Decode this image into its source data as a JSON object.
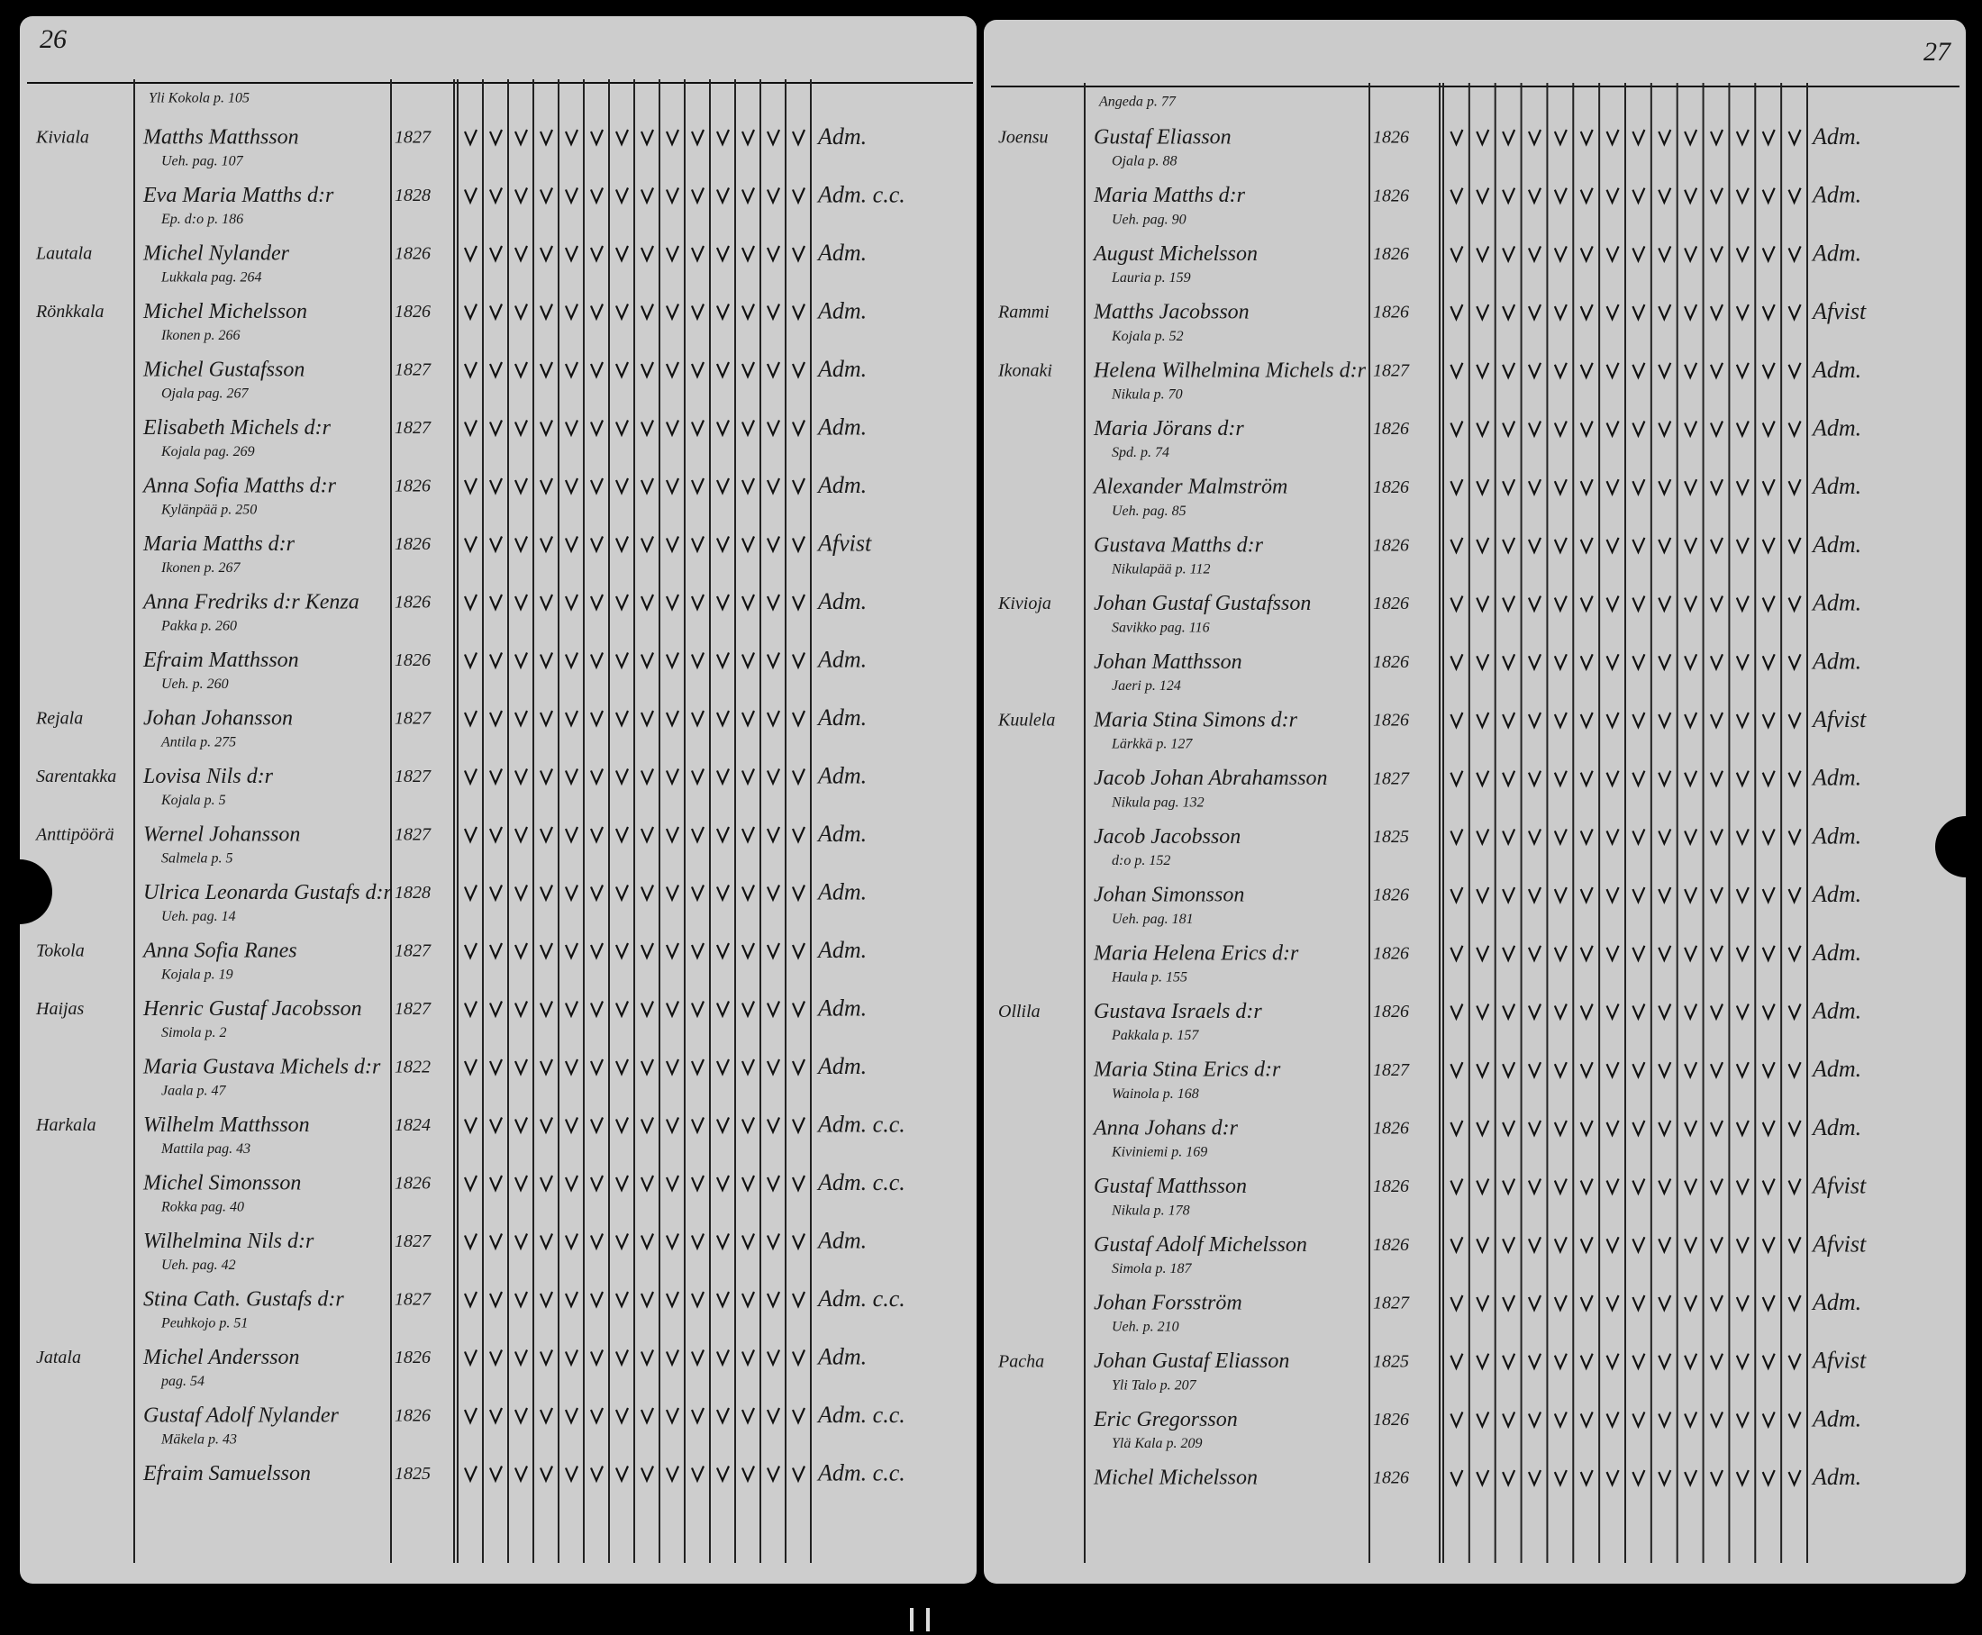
{
  "left_page": {
    "page_number": "26",
    "header_note": "Yli Kokola p. 105",
    "rows": [
      {
        "village": "Kiviala",
        "name": "Matths Matthsson",
        "note": "Ueh. pag. 107",
        "date": "1827",
        "result": "Adm."
      },
      {
        "name": "Eva Maria Matths d:r",
        "note": "Ep. d:o p. 186",
        "date": "1828",
        "result": "Adm. c.c."
      },
      {
        "village": "Lautala",
        "name": "Michel Nylander",
        "note": "Lukkala pag. 264",
        "date": "1826",
        "result": "Adm."
      },
      {
        "village": "Rönkkala",
        "name": "Michel Michelsson",
        "note": "Ikonen p. 266",
        "date": "1826",
        "result": "Adm."
      },
      {
        "name": "Michel Gustafsson",
        "note": "Ojala pag. 267",
        "date": "1827",
        "result": "Adm."
      },
      {
        "name": "Elisabeth Michels d:r",
        "note": "Kojala pag. 269",
        "date": "1827",
        "result": "Adm."
      },
      {
        "name": "Anna Sofia Matths d:r",
        "note": "Kylänpää p. 250",
        "date": "1826",
        "result": "Adm."
      },
      {
        "name": "Maria Matths d:r",
        "note": "Ikonen p. 267",
        "date": "1826",
        "result": "Afvist"
      },
      {
        "name": "Anna Fredriks d:r Kenza",
        "note": "Pakka p. 260",
        "date": "1826",
        "result": "Adm."
      },
      {
        "name": "Efraim Matthsson",
        "note": "Ueh. p. 260",
        "date": "1826",
        "result": "Adm."
      },
      {
        "village": "Rejala",
        "name": "Johan Johansson",
        "note": "Antila p. 275",
        "date": "1827",
        "result": "Adm."
      },
      {
        "village": "Sarentakka",
        "name": "Lovisa Nils d:r",
        "note": "Kojala p. 5",
        "date": "1827",
        "result": "Adm."
      },
      {
        "village": "Anttipöörä",
        "name": "Wernel Johansson",
        "note": "Salmela p. 5",
        "date": "1827",
        "result": "Adm."
      },
      {
        "name": "Ulrica Leonarda Gustafs d:r",
        "note": "Ueh. pag. 14",
        "date": "1828",
        "result": "Adm."
      },
      {
        "village": "Tokola",
        "name": "Anna Sofia Ranes",
        "note": "Kojala p. 19",
        "date": "1827",
        "result": "Adm."
      },
      {
        "village": "Haijas",
        "name": "Henric Gustaf Jacobsson",
        "note": "Simola p. 2",
        "date": "1827",
        "result": "Adm."
      },
      {
        "name": "Maria Gustava Michels d:r",
        "note": "Jaala p. 47",
        "date": "1822",
        "result": "Adm."
      },
      {
        "village": "Harkala",
        "name": "Wilhelm Matthsson",
        "note": "Mattila pag. 43",
        "date": "1824",
        "result": "Adm. c.c."
      },
      {
        "name": "Michel Simonsson",
        "note": "Rokka pag. 40",
        "date": "1826",
        "result": "Adm. c.c."
      },
      {
        "name": "Wilhelmina Nils d:r",
        "note": "Ueh. pag. 42",
        "date": "1827",
        "result": "Adm."
      },
      {
        "name": "Stina Cath. Gustafs d:r",
        "note": "Peuhkojo p. 51",
        "date": "1827",
        "result": "Adm. c.c."
      },
      {
        "village": "Jatala",
        "name": "Michel Andersson",
        "note": "pag. 54",
        "date": "1826",
        "result": "Adm."
      },
      {
        "name": "Gustaf Adolf Nylander",
        "note": "Mäkela p. 43",
        "date": "1826",
        "result": "Adm. c.c."
      },
      {
        "name": "Efraim Samuelsson",
        "date": "1825",
        "result": "Adm. c.c."
      }
    ]
  },
  "right_page": {
    "page_number": "27",
    "header_note": "Angeda p. 77",
    "rows": [
      {
        "village": "Joensu",
        "name": "Gustaf Eliasson",
        "note": "Ojala p. 88",
        "date": "1826",
        "result": "Adm."
      },
      {
        "name": "Maria Matths d:r",
        "note": "Ueh. pag. 90",
        "date": "1826",
        "result": "Adm."
      },
      {
        "name": "August Michelsson",
        "note": "Lauria p. 159",
        "date": "1826",
        "result": "Adm."
      },
      {
        "village": "Rammi",
        "name": "Matths Jacobsson",
        "note": "Kojala p. 52",
        "date": "1826",
        "result": "Afvist"
      },
      {
        "village": "Ikonaki",
        "name": "Helena Wilhelmina Michels d:r",
        "note": "Nikula p. 70",
        "date": "1827",
        "result": "Adm."
      },
      {
        "name": "Maria Jörans d:r",
        "note": "Spd. p. 74",
        "date": "1826",
        "result": "Adm."
      },
      {
        "name": "Alexander Malmström",
        "note": "Ueh. pag. 85",
        "date": "1826",
        "result": "Adm."
      },
      {
        "name": "Gustava Matths d:r",
        "note": "Nikulapää p. 112",
        "date": "1826",
        "result": "Adm."
      },
      {
        "village": "Kivioja",
        "name": "Johan Gustaf Gustafsson",
        "note": "Savikko pag. 116",
        "date": "1826",
        "result": "Adm."
      },
      {
        "name": "Johan Matthsson",
        "note": "Jaeri p. 124",
        "date": "1826",
        "result": "Adm."
      },
      {
        "village": "Kuulela",
        "name": "Maria Stina Simons d:r",
        "note": "Lärkkä p. 127",
        "date": "1826",
        "result": "Afvist"
      },
      {
        "name": "Jacob Johan Abrahamsson",
        "note": "Nikula pag. 132",
        "date": "1827",
        "result": "Adm."
      },
      {
        "name": "Jacob Jacobsson",
        "note": "d:o p. 152",
        "date": "1825",
        "result": "Adm."
      },
      {
        "name": "Johan Simonsson",
        "note": "Ueh. pag. 181",
        "date": "1826",
        "result": "Adm."
      },
      {
        "name": "Maria Helena Erics d:r",
        "note": "Haula p. 155",
        "date": "1826",
        "result": "Adm."
      },
      {
        "village": "Ollila",
        "name": "Gustava Israels d:r",
        "note": "Pakkala p. 157",
        "date": "1826",
        "result": "Adm."
      },
      {
        "name": "Maria Stina Erics d:r",
        "note": "Wainola p. 168",
        "date": "1827",
        "result": "Adm."
      },
      {
        "name": "Anna Johans d:r",
        "note": "Kiviniemi p. 169",
        "date": "1826",
        "result": "Adm."
      },
      {
        "name": "Gustaf Matthsson",
        "note": "Nikula p. 178",
        "date": "1826",
        "result": "Afvist"
      },
      {
        "name": "Gustaf Adolf Michelsson",
        "note": "Simola p. 187",
        "date": "1826",
        "result": "Afvist"
      },
      {
        "name": "Johan Forsström",
        "note": "Ueh. p. 210",
        "date": "1827",
        "result": "Adm."
      },
      {
        "village": "Pacha",
        "name": "Johan Gustaf Eliasson",
        "note": "Yli Talo p. 207",
        "date": "1825",
        "result": "Afvist"
      },
      {
        "name": "Eric Gregorsson",
        "note": "Ylä Kala p. 209",
        "date": "1826",
        "result": "Adm."
      },
      {
        "name": "Michel Michelsson",
        "date": "1826",
        "result": "Adm."
      }
    ]
  }
}
